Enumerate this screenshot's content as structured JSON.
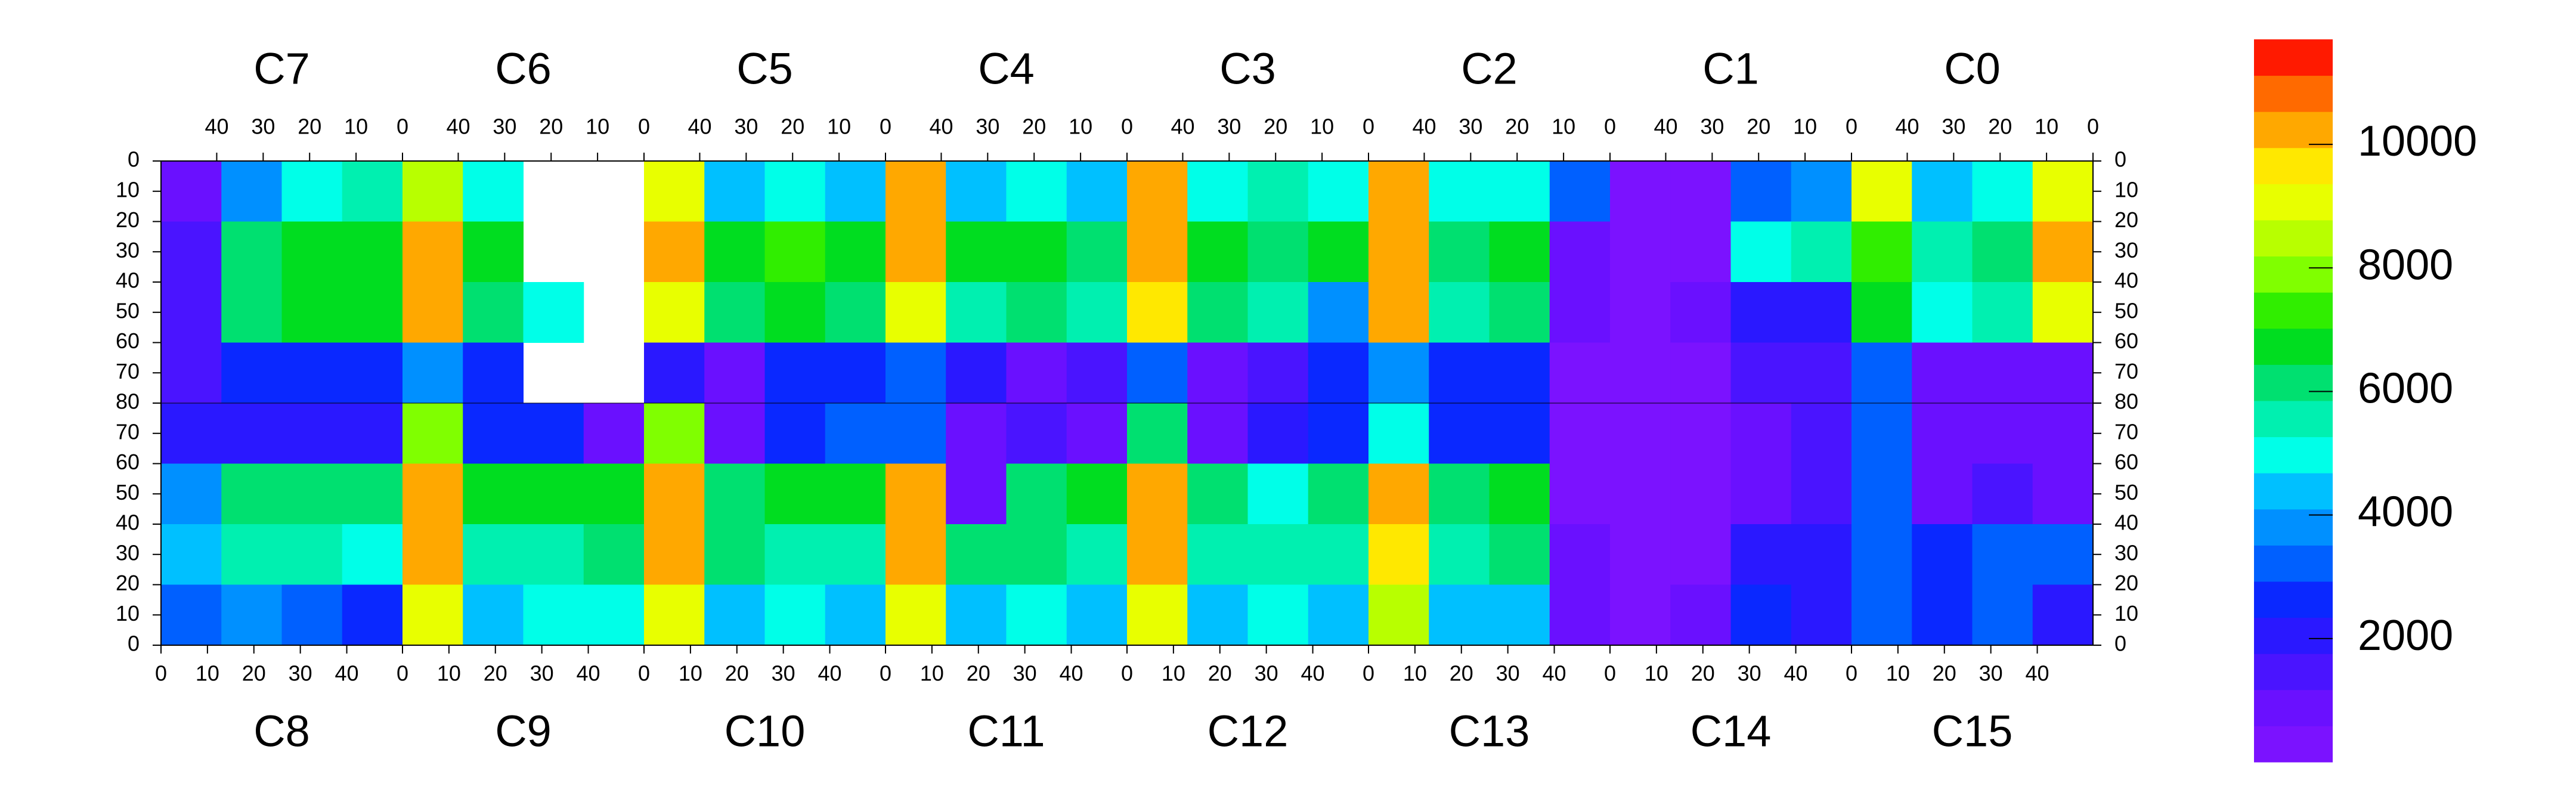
{
  "chart_data": {
    "type": "heatmap",
    "top_chips": [
      "C7",
      "C6",
      "C5",
      "C4",
      "C3",
      "C2",
      "C1",
      "C0"
    ],
    "bottom_chips": [
      "C8",
      "C9",
      "C10",
      "C11",
      "C12",
      "C13",
      "C14",
      "C15"
    ],
    "xlim": [
      0,
      52
    ],
    "xticks": [
      0,
      10,
      20,
      30,
      40
    ],
    "ylim": [
      0,
      80
    ],
    "yticks": [
      0,
      10,
      20,
      30,
      40,
      50,
      60,
      70,
      80
    ],
    "zlim": [
      0,
      11700
    ],
    "zticks": [
      2000,
      4000,
      6000,
      8000,
      10000
    ],
    "palette": [
      "#7b12ff",
      "#6a10ff",
      "#4a14ff",
      "#2a18ff",
      "#0a28ff",
      "#0060ff",
      "#0090ff",
      "#00c0ff",
      "#00ffe8",
      "#00f0b0",
      "#00e070",
      "#00dd20",
      "#30ee00",
      "#80ff00",
      "#b8ff00",
      "#e8ff00",
      "#ffe800",
      "#ffa800",
      "#ff6a00",
      "#ff1a00"
    ],
    "z": [
      [
        1000,
        4000,
        5000,
        5500,
        8500,
        5000,
        null,
        null,
        9000,
        4500,
        5000,
        4500,
        10000,
        4500,
        5000,
        4500,
        10000,
        5000,
        5500,
        5000,
        10500,
        5000,
        5000,
        3000,
        500,
        500,
        3500,
        4000,
        9000,
        4500,
        5000,
        9000
      ],
      [
        1500,
        6000,
        6500,
        7000,
        10000,
        6500,
        null,
        null,
        10000,
        6500,
        7500,
        7000,
        10500,
        6500,
        7000,
        6000,
        10000,
        6500,
        6000,
        6500,
        10500,
        6000,
        6500,
        1000,
        500,
        500,
        5000,
        5500,
        7500,
        5500,
        6000,
        10500
      ],
      [
        1500,
        6000,
        6500,
        7000,
        10000,
        6000,
        5000,
        null,
        9000,
        6000,
        6500,
        6000,
        9000,
        5500,
        6000,
        5500,
        9500,
        6000,
        5500,
        4000,
        10000,
        5500,
        6000,
        1000,
        500,
        800,
        2000,
        2000,
        6500,
        5000,
        5500,
        9000
      ],
      [
        1500,
        2500,
        2500,
        2500,
        4000,
        2500,
        null,
        null,
        2000,
        1000,
        2500,
        2500,
        3500,
        2000,
        1000,
        1500,
        3000,
        1000,
        1500,
        2500,
        4000,
        2500,
        2500,
        500,
        500,
        500,
        1500,
        1500,
        3000,
        1000,
        1000,
        1000
      ],
      [
        2000,
        2000,
        2000,
        2000,
        8000,
        2500,
        2500,
        1000,
        8000,
        1000,
        2500,
        3000,
        3500,
        1000,
        1500,
        1000,
        6000,
        1000,
        2000,
        2500,
        5000,
        2500,
        2500,
        500,
        500,
        500,
        1000,
        1500,
        3000,
        1000,
        1000,
        1000
      ],
      [
        4000,
        6000,
        6000,
        6000,
        10000,
        6500,
        7000,
        6500,
        10000,
        6000,
        6500,
        6500,
        10500,
        1000,
        6000,
        6500,
        10000,
        6000,
        5000,
        6000,
        10000,
        6000,
        6500,
        500,
        500,
        500,
        1000,
        1500,
        3000,
        1000,
        1500,
        1000
      ],
      [
        4500,
        5500,
        5500,
        5000,
        10000,
        5500,
        5500,
        6000,
        10000,
        6000,
        5500,
        5500,
        10000,
        6000,
        6000,
        5500,
        10000,
        5500,
        5500,
        5500,
        9500,
        5500,
        6000,
        800,
        500,
        500,
        2000,
        2000,
        3500,
        2500,
        3000,
        3000
      ],
      [
        3000,
        4000,
        3500,
        2500,
        9000,
        4500,
        5000,
        5000,
        9000,
        4500,
        5000,
        4500,
        9000,
        4500,
        5000,
        4500,
        9000,
        4500,
        5000,
        4500,
        8500,
        4500,
        4500,
        1000,
        500,
        800,
        2500,
        2000,
        3000,
        2500,
        3000,
        2000
      ]
    ]
  }
}
